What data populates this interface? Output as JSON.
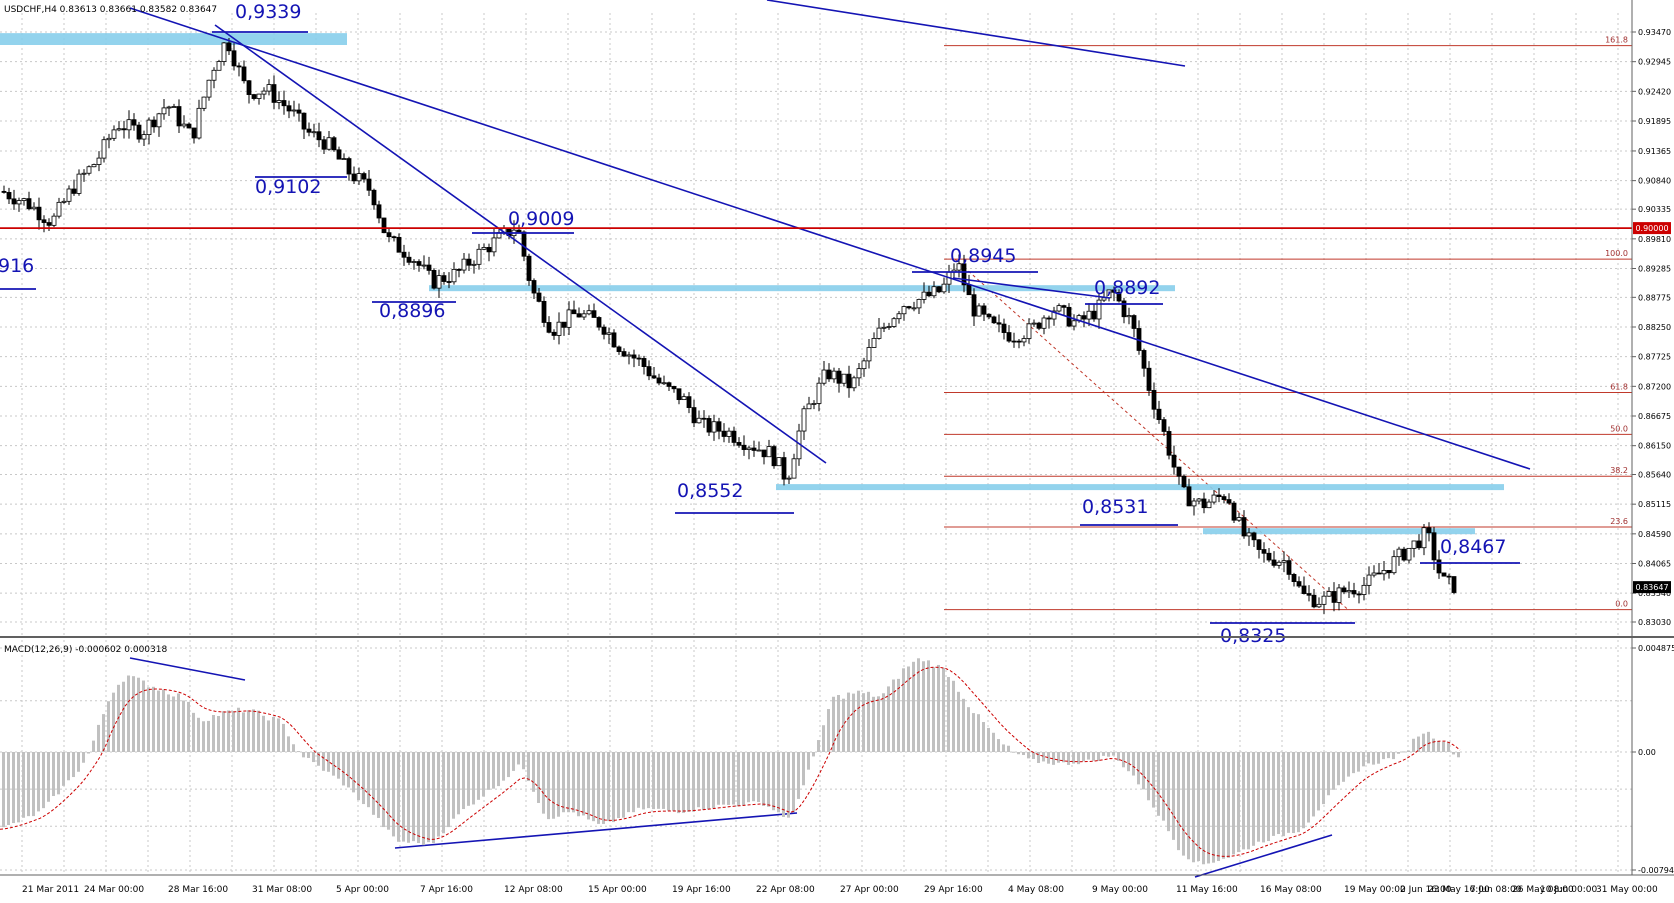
{
  "chart_data": [
    {
      "type": "candlestick",
      "title": "USDCHF,H4  0.83613 0.83661 0.83582 0.83647",
      "symbol": "USDCHF,H4",
      "ohlc_last": {
        "open": 0.83613,
        "high": 0.83661,
        "low": 0.83582,
        "close": 0.83647
      },
      "current_price_label": "0.83647",
      "ylim": [
        0.8303,
        0.9347
      ],
      "price_axis_ticks": [
        "0.93470",
        "0.92945",
        "0.92420",
        "0.91895",
        "0.91365",
        "0.90840",
        "0.90335",
        "0.89810",
        "0.89285",
        "0.88775",
        "0.88250",
        "0.87725",
        "0.87200",
        "0.86675",
        "0.86150",
        "0.85640",
        "0.85115",
        "0.84590",
        "0.84065",
        "0.83540",
        "0.83030"
      ],
      "price_axis_values": [
        0.9347,
        0.92945,
        0.9242,
        0.91895,
        0.91365,
        0.9084,
        0.90335,
        0.8981,
        0.89285,
        0.88775,
        0.8825,
        0.87725,
        0.872,
        0.86675,
        0.8615,
        0.8564,
        0.85115,
        0.8459,
        0.84065,
        0.8354,
        0.8303
      ],
      "horizontal_line": {
        "value": 0.9,
        "label": "0.90000",
        "color": "#cc0000"
      },
      "time_axis_labels": [
        "21 Mar 2011",
        "24 Mar 00:00",
        "28 Mar 16:00",
        "31 Mar 08:00",
        "5 Apr 00:00",
        "7 Apr 16:00",
        "12 Apr 08:00",
        "15 Apr 00:00",
        "19 Apr 16:00",
        "22 Apr 08:00",
        "27 Apr 00:00",
        "29 Apr 16:00",
        "4 May 08:00",
        "9 May 00:00",
        "11 May 16:00",
        "16 May 08:00",
        "19 May 00:00",
        "23 May 16:00",
        "26 May 08:00",
        "31 May 00:00",
        "2 Jun 16:00",
        "7 Jun 08:00",
        "10 Jun 00:00"
      ],
      "price_annotations": [
        "0,9339",
        "0,9102",
        "0,9009",
        "0,8896",
        "0,8945",
        "0,8892",
        "0,8552",
        "0,8531",
        "0,8467",
        "0,8325",
        "916"
      ],
      "fibonacci": {
        "levels": [
          {
            "ratio": "161.8",
            "value": 0.9323
          },
          {
            "ratio": "100.0",
            "value": 0.8945
          },
          {
            "ratio": "61.8",
            "value": 0.8709
          },
          {
            "ratio": "50.0",
            "value": 0.8635
          },
          {
            "ratio": "38.2",
            "value": 0.8561
          },
          {
            "ratio": "23.6",
            "value": 0.8471
          },
          {
            "ratio": "0.0",
            "value": 0.8325
          }
        ],
        "color": "#c0392b"
      },
      "zones": [
        {
          "low": 0.9324,
          "high": 0.9345
        },
        {
          "low": 0.8893,
          "high": 0.8899
        },
        {
          "low": 0.8537,
          "high": 0.8547
        },
        {
          "low": 0.8464,
          "high": 0.8469
        }
      ],
      "colors": {
        "trendline": "#1414b4",
        "zone": "#87ceeb",
        "grid": "#c8c8c8",
        "candle": "#000000"
      }
    },
    {
      "type": "macd",
      "title": "MACD(12,26,9) -0.000602 0.000318",
      "params": "MACD(12,26,9)",
      "main_value": -0.000602,
      "signal_value": 0.000318,
      "ylim": [
        -0.00794,
        0.004875
      ],
      "axis_ticks": [
        "0.004875",
        "0.00",
        "-0.00794"
      ],
      "axis_values": [
        0.004875,
        0,
        -0.00794
      ],
      "colors": {
        "histogram": "#c0c0c0",
        "signal": "#cc0000",
        "divergence": "#1414b4"
      }
    }
  ]
}
